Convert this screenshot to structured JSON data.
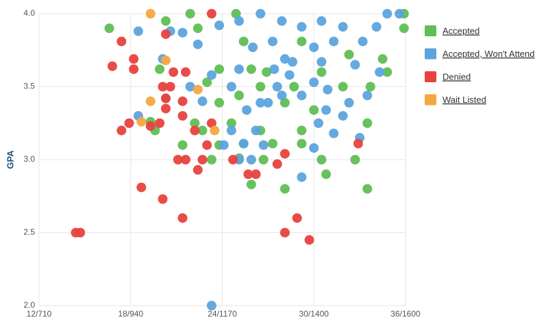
{
  "chart_data": {
    "type": "scatter",
    "y_label": "GPA",
    "xlim": [
      12,
      36
    ],
    "ylim": [
      2,
      4
    ],
    "xticks": [
      {
        "value": 12,
        "label": "12/710"
      },
      {
        "value": 18,
        "label": "18/940"
      },
      {
        "value": 24,
        "label": "24/1170"
      },
      {
        "value": 30,
        "label": "30/1400"
      },
      {
        "value": 36,
        "label": "36/1600"
      }
    ],
    "yticks": [
      {
        "value": 2,
        "label": "2.0"
      },
      2.5,
      {
        "value": 3,
        "label": "3.0"
      },
      3.5,
      {
        "value": 4,
        "label": "4.0"
      }
    ],
    "grid": true,
    "legend": "right",
    "series": [
      {
        "name": "Accepted",
        "color": "#5fbf54",
        "x": [
          16.6,
          19.3,
          19.6,
          20.3,
          20.3,
          19.9,
          21.4,
          22.2,
          21.9,
          22.4,
          22.7,
          23.3,
          23.8,
          23.8,
          23.0,
          24.6,
          25.1,
          25.9,
          25.9,
          26.5,
          26.7,
          27.3,
          28.1,
          28.1,
          29.2,
          29.2,
          30.5,
          30.8,
          32.7,
          33.5,
          33.5,
          34.8,
          35.9,
          35.9,
          34.5,
          31.9,
          33.7,
          25.4,
          29.2,
          26.9,
          30.5,
          32.3,
          24.9,
          30.0,
          25.1,
          25.4,
          23.8,
          26.5,
          28.7
        ],
        "values": [
          3.9,
          3.26,
          3.2,
          3.95,
          3.42,
          3.62,
          3.1,
          3.25,
          4.0,
          3.9,
          3.2,
          3.0,
          3.1,
          3.62,
          3.53,
          3.25,
          3.44,
          2.83,
          3.62,
          3.2,
          3.0,
          3.11,
          2.8,
          3.39,
          3.2,
          3.11,
          3.0,
          2.9,
          3.0,
          2.8,
          3.25,
          3.6,
          3.9,
          4.0,
          3.69,
          3.5,
          3.5,
          3.81,
          3.81,
          3.6,
          3.6,
          3.72,
          4.0,
          3.34,
          3.01,
          3.11,
          3.39,
          3.5,
          3.5
        ]
      },
      {
        "name": "Accepted, Won't Attend",
        "color": "#5ca4dd",
        "x": [
          23.3,
          18.5,
          18.5,
          20.6,
          21.4,
          20.1,
          21.9,
          22.4,
          22.7,
          23.3,
          23.8,
          24.1,
          24.6,
          25.1,
          25.4,
          25.6,
          25.9,
          26.2,
          26.7,
          27.0,
          27.6,
          28.1,
          29.2,
          30.0,
          30.3,
          30.8,
          31.3,
          31.9,
          33.0,
          33.5,
          34.3,
          35.6,
          34.8,
          33.2,
          31.9,
          30.5,
          29.2,
          27.9,
          26.5,
          25.1,
          26.0,
          27.3,
          28.6,
          30.0,
          31.3,
          32.7,
          25.1,
          28.4,
          30.0,
          30.9,
          32.3,
          26.5,
          29.2,
          24.6,
          27.4,
          27.9,
          30.5,
          34.1
        ],
        "values": [
          2.0,
          3.88,
          3.3,
          3.88,
          3.87,
          3.69,
          3.5,
          3.79,
          3.4,
          3.58,
          3.92,
          3.1,
          3.2,
          3.0,
          3.11,
          3.34,
          3.0,
          3.2,
          3.1,
          3.39,
          3.5,
          3.69,
          2.88,
          3.08,
          3.25,
          3.34,
          3.18,
          3.3,
          3.15,
          3.44,
          3.6,
          4.0,
          4.0,
          3.81,
          3.91,
          3.95,
          3.91,
          3.95,
          4.0,
          3.95,
          3.77,
          3.81,
          3.67,
          3.77,
          3.81,
          3.65,
          3.62,
          3.58,
          3.53,
          3.48,
          3.39,
          3.39,
          3.44,
          3.5,
          3.62,
          3.44,
          3.67,
          3.91
        ]
      },
      {
        "name": "Denied",
        "color": "#e8423e",
        "x": [
          14.4,
          14.7,
          16.8,
          17.4,
          17.4,
          17.9,
          18.2,
          18.2,
          18.7,
          19.3,
          19.9,
          20.1,
          20.1,
          20.3,
          20.6,
          20.3,
          20.8,
          21.1,
          21.4,
          21.4,
          21.4,
          21.6,
          21.6,
          22.2,
          22.4,
          22.7,
          23.0,
          23.3,
          23.3,
          24.7,
          25.7,
          26.2,
          27.6,
          28.1,
          28.9,
          29.7,
          28.1,
          32.9,
          20.3
        ],
        "values": [
          2.5,
          2.5,
          3.64,
          3.81,
          3.2,
          3.25,
          3.69,
          3.62,
          2.81,
          3.23,
          3.25,
          2.73,
          3.5,
          3.86,
          3.5,
          3.35,
          3.6,
          3.0,
          2.6,
          3.3,
          3.4,
          3.6,
          3.0,
          3.2,
          2.93,
          3.0,
          3.1,
          3.25,
          4.0,
          3.0,
          2.9,
          2.9,
          2.97,
          2.5,
          2.6,
          2.45,
          3.04,
          3.11,
          3.42
        ]
      },
      {
        "name": "Wait Listed",
        "color": "#f5a742",
        "x": [
          19.3,
          19.3,
          18.7,
          20.3,
          23.5,
          22.4
        ],
        "values": [
          4.0,
          3.4,
          3.26,
          3.68,
          3.2,
          3.48
        ]
      }
    ]
  }
}
